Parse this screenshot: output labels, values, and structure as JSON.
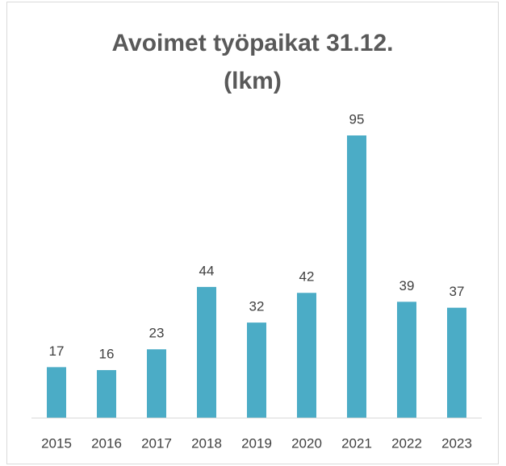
{
  "chart_data": {
    "type": "bar",
    "title": "Avoimet työpaikat 31.12. (lkm)",
    "categories": [
      "2015",
      "2016",
      "2017",
      "2018",
      "2019",
      "2020",
      "2021",
      "2022",
      "2023"
    ],
    "values": [
      17,
      16,
      23,
      44,
      32,
      42,
      95,
      39,
      37
    ],
    "color": "#4bacc6"
  }
}
